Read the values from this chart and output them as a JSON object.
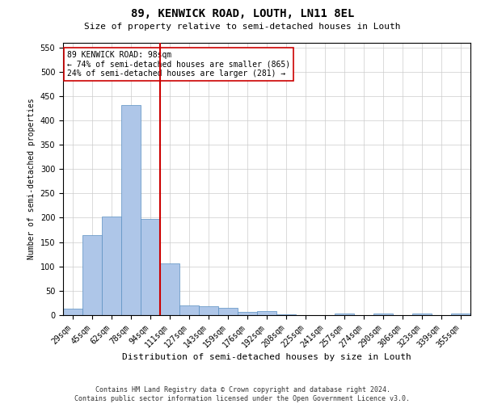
{
  "title": "89, KENWICK ROAD, LOUTH, LN11 8EL",
  "subtitle": "Size of property relative to semi-detached houses in Louth",
  "xlabel": "Distribution of semi-detached houses by size in Louth",
  "ylabel": "Number of semi-detached properties",
  "categories": [
    "29sqm",
    "45sqm",
    "62sqm",
    "78sqm",
    "94sqm",
    "111sqm",
    "127sqm",
    "143sqm",
    "159sqm",
    "176sqm",
    "192sqm",
    "208sqm",
    "225sqm",
    "241sqm",
    "257sqm",
    "274sqm",
    "290sqm",
    "306sqm",
    "323sqm",
    "339sqm",
    "355sqm"
  ],
  "values": [
    13,
    165,
    203,
    432,
    197,
    107,
    20,
    18,
    15,
    7,
    8,
    1,
    0,
    0,
    3,
    0,
    4,
    0,
    3,
    0,
    3
  ],
  "bar_color": "#aec6e8",
  "bar_edge_color": "#5a8fc2",
  "property_line_index": 4,
  "property_line_color": "#cc0000",
  "annotation_text_line1": "89 KENWICK ROAD: 98sqm",
  "annotation_text_line2": "← 74% of semi-detached houses are smaller (865)",
  "annotation_text_line3": "24% of semi-detached houses are larger (281) →",
  "annotation_box_color": "#ffffff",
  "annotation_box_edge_color": "#cc0000",
  "ylim": [
    0,
    560
  ],
  "yticks": [
    0,
    50,
    100,
    150,
    200,
    250,
    300,
    350,
    400,
    450,
    500,
    550
  ],
  "footer_line1": "Contains HM Land Registry data © Crown copyright and database right 2024.",
  "footer_line2": "Contains public sector information licensed under the Open Government Licence v3.0.",
  "bg_color": "#ffffff",
  "grid_color": "#cccccc",
  "title_fontsize": 10,
  "subtitle_fontsize": 8,
  "xlabel_fontsize": 8,
  "ylabel_fontsize": 7,
  "tick_fontsize": 7,
  "annot_fontsize": 7,
  "footer_fontsize": 6
}
